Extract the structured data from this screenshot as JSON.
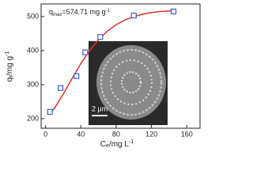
{
  "chart_data": {
    "type": "scatter",
    "annotation": {
      "q": "q",
      "sub": "max",
      "text": "=574.71 mg g",
      "sup": "-1"
    },
    "x_label": {
      "main": "C",
      "sub": "e",
      "text": "/mg L",
      "sup": "-1"
    },
    "y_label": {
      "main": "q",
      "sub": "t",
      "text": "/mg g",
      "sup": "-1"
    },
    "inset_label": "2 μm",
    "x": [
      5,
      17,
      35,
      45,
      62,
      100,
      145
    ],
    "values": [
      220,
      290,
      325,
      395,
      440,
      503,
      515
    ],
    "color": "#3a5fcd",
    "curve": {
      "color": "#e0302a",
      "x": [
        5,
        10,
        20,
        30,
        40,
        50,
        60,
        70,
        80,
        90,
        100,
        110,
        120,
        130,
        145
      ],
      "values": [
        215,
        230,
        272,
        318,
        362,
        400,
        432,
        457,
        476,
        490,
        500,
        507,
        512,
        515,
        517
      ]
    },
    "xlim": [
      -5,
      175
    ],
    "xticks": [
      0,
      40,
      80,
      120,
      160
    ],
    "ylim": [
      172,
      537
    ],
    "yticks": [
      200,
      300,
      400,
      500
    ]
  }
}
